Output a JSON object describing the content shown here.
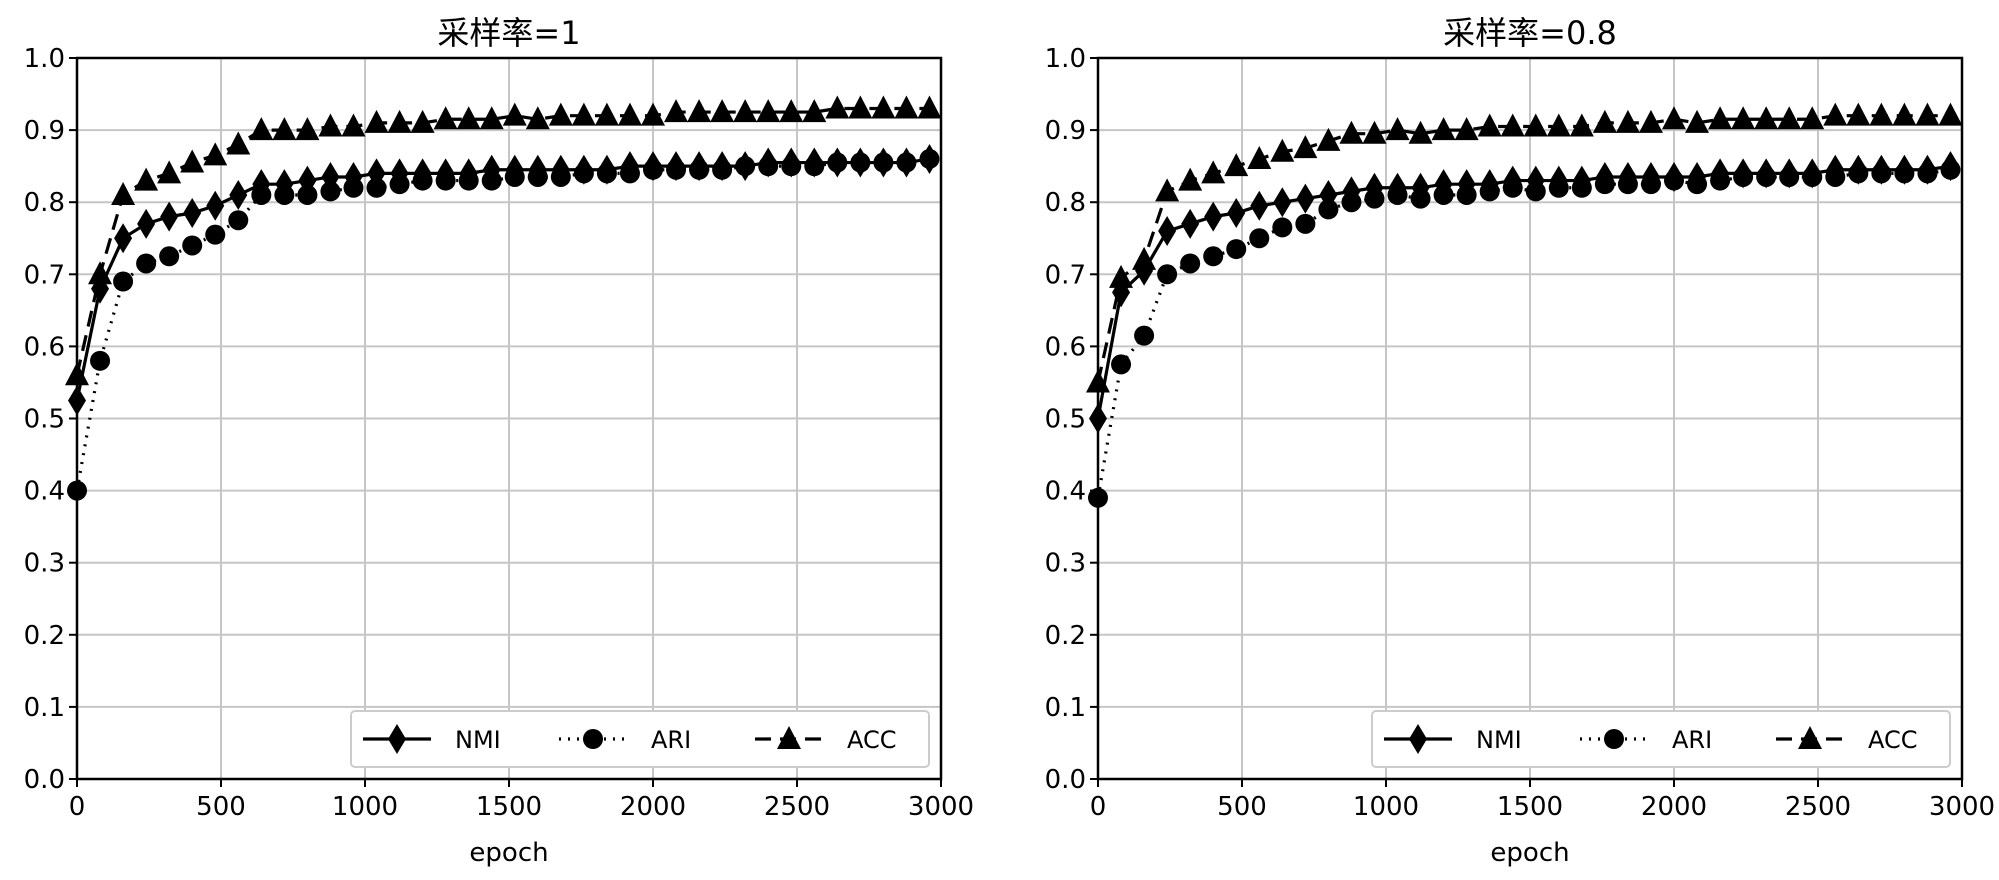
{
  "chart_data": [
    {
      "type": "line",
      "title": "采样率=1",
      "xlabel": "epoch",
      "ylabel": "",
      "xlim": [
        0,
        3000
      ],
      "ylim": [
        0.0,
        1.0
      ],
      "xticks": [
        "0",
        "500",
        "1000",
        "1500",
        "2000",
        "2500",
        "3000"
      ],
      "yticks": [
        "0.0",
        "0.1",
        "0.2",
        "0.3",
        "0.4",
        "0.5",
        "0.6",
        "0.7",
        "0.8",
        "0.9",
        "1.0"
      ],
      "grid": true,
      "legend_position": "bottom-right",
      "x": [
        0,
        80,
        160,
        240,
        320,
        400,
        480,
        560,
        640,
        720,
        800,
        880,
        960,
        1040,
        1120,
        1200,
        1280,
        1360,
        1440,
        1520,
        1600,
        1680,
        1760,
        1840,
        1920,
        2000,
        2080,
        2160,
        2240,
        2320,
        2400,
        2480,
        2560,
        2640,
        2720,
        2800,
        2880,
        2960
      ],
      "series": [
        {
          "name": "NMI",
          "style": "solid",
          "marker": "diamond",
          "values": [
            0.525,
            0.68,
            0.75,
            0.77,
            0.78,
            0.785,
            0.795,
            0.81,
            0.825,
            0.825,
            0.83,
            0.835,
            0.835,
            0.84,
            0.84,
            0.84,
            0.84,
            0.84,
            0.845,
            0.845,
            0.845,
            0.845,
            0.845,
            0.845,
            0.85,
            0.85,
            0.85,
            0.85,
            0.85,
            0.85,
            0.855,
            0.855,
            0.855,
            0.855,
            0.855,
            0.855,
            0.855,
            0.86
          ]
        },
        {
          "name": "ARI",
          "style": "dotted",
          "marker": "circle",
          "values": [
            0.4,
            0.58,
            0.69,
            0.715,
            0.725,
            0.74,
            0.755,
            0.775,
            0.81,
            0.81,
            0.81,
            0.815,
            0.82,
            0.82,
            0.825,
            0.83,
            0.83,
            0.83,
            0.83,
            0.835,
            0.835,
            0.835,
            0.84,
            0.84,
            0.84,
            0.845,
            0.845,
            0.845,
            0.845,
            0.85,
            0.85,
            0.85,
            0.85,
            0.855,
            0.855,
            0.855,
            0.855,
            0.86
          ]
        },
        {
          "name": "ACC",
          "style": "dashed",
          "marker": "triangle",
          "values": [
            0.56,
            0.7,
            0.81,
            0.83,
            0.84,
            0.855,
            0.865,
            0.88,
            0.9,
            0.9,
            0.9,
            0.905,
            0.905,
            0.91,
            0.91,
            0.91,
            0.915,
            0.915,
            0.915,
            0.92,
            0.915,
            0.92,
            0.92,
            0.92,
            0.92,
            0.92,
            0.925,
            0.925,
            0.925,
            0.925,
            0.925,
            0.925,
            0.925,
            0.93,
            0.93,
            0.93,
            0.93,
            0.93
          ]
        }
      ]
    },
    {
      "type": "line",
      "title": "采样率=0.8",
      "xlabel": "epoch",
      "ylabel": "",
      "xlim": [
        0,
        3000
      ],
      "ylim": [
        0.0,
        1.0
      ],
      "xticks": [
        "0",
        "500",
        "1000",
        "1500",
        "2000",
        "2500",
        "3000"
      ],
      "yticks": [
        "0.0",
        "0.1",
        "0.2",
        "0.3",
        "0.4",
        "0.5",
        "0.6",
        "0.7",
        "0.8",
        "0.9",
        "1.0"
      ],
      "grid": true,
      "legend_position": "bottom-right",
      "x": [
        0,
        80,
        160,
        240,
        320,
        400,
        480,
        560,
        640,
        720,
        800,
        880,
        960,
        1040,
        1120,
        1200,
        1280,
        1360,
        1440,
        1520,
        1600,
        1680,
        1760,
        1840,
        1920,
        2000,
        2080,
        2160,
        2240,
        2320,
        2400,
        2480,
        2560,
        2640,
        2720,
        2800,
        2880,
        2960
      ],
      "series": [
        {
          "name": "NMI",
          "style": "solid",
          "marker": "diamond",
          "values": [
            0.5,
            0.675,
            0.705,
            0.76,
            0.77,
            0.78,
            0.785,
            0.795,
            0.8,
            0.805,
            0.81,
            0.815,
            0.82,
            0.82,
            0.82,
            0.825,
            0.825,
            0.825,
            0.83,
            0.83,
            0.83,
            0.83,
            0.835,
            0.835,
            0.835,
            0.835,
            0.835,
            0.84,
            0.84,
            0.84,
            0.84,
            0.84,
            0.845,
            0.845,
            0.845,
            0.845,
            0.845,
            0.85
          ]
        },
        {
          "name": "ARI",
          "style": "dotted",
          "marker": "circle",
          "values": [
            0.39,
            0.575,
            0.615,
            0.7,
            0.715,
            0.725,
            0.735,
            0.75,
            0.765,
            0.77,
            0.79,
            0.8,
            0.805,
            0.81,
            0.805,
            0.81,
            0.81,
            0.815,
            0.82,
            0.815,
            0.82,
            0.82,
            0.825,
            0.825,
            0.825,
            0.83,
            0.825,
            0.83,
            0.835,
            0.835,
            0.835,
            0.835,
            0.835,
            0.84,
            0.84,
            0.84,
            0.84,
            0.845
          ]
        },
        {
          "name": "ACC",
          "style": "dashed",
          "marker": "triangle",
          "values": [
            0.55,
            0.695,
            0.72,
            0.815,
            0.83,
            0.84,
            0.85,
            0.86,
            0.87,
            0.875,
            0.885,
            0.895,
            0.895,
            0.9,
            0.895,
            0.9,
            0.9,
            0.905,
            0.905,
            0.905,
            0.905,
            0.905,
            0.91,
            0.91,
            0.91,
            0.915,
            0.91,
            0.915,
            0.915,
            0.915,
            0.915,
            0.915,
            0.92,
            0.92,
            0.92,
            0.92,
            0.92,
            0.92
          ]
        }
      ]
    }
  ]
}
